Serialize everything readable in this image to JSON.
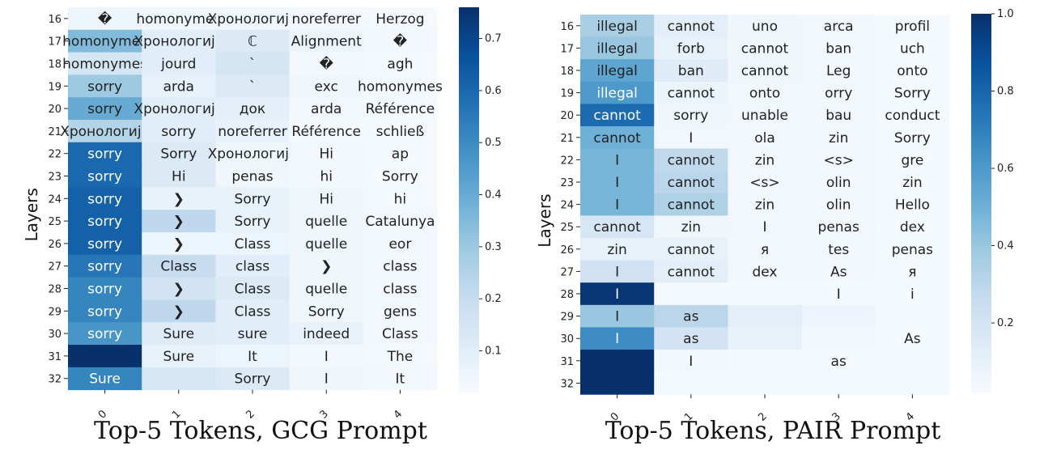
{
  "chart_data": [
    {
      "type": "heatmap",
      "title": "Top-5 Tokens, GCG  Prompt",
      "xlabel": "",
      "ylabel": "Layers",
      "x_categories": [
        "0",
        "1",
        "2",
        "3",
        "4"
      ],
      "y_categories": [
        "16",
        "17",
        "18",
        "19",
        "20",
        "21",
        "22",
        "23",
        "24",
        "25",
        "26",
        "27",
        "28",
        "29",
        "30",
        "31",
        "32"
      ],
      "colorbar": {
        "min": 0.02,
        "max": 0.76,
        "ticks": [
          0.1,
          0.2,
          0.3,
          0.4,
          0.5,
          0.6,
          0.7
        ]
      },
      "tokens": [
        [
          "�",
          "homonymes",
          "Хронологија",
          "noreferrer",
          "Herzog"
        ],
        [
          "homonymes",
          "Хронологија",
          "ℂ",
          "Alignment",
          "�"
        ],
        [
          "homonymes",
          "jourd",
          "`",
          "�",
          "agh"
        ],
        [
          "sorry",
          "arda",
          "`",
          "exc",
          "homonymes"
        ],
        [
          "sorry",
          "Хронологија",
          "док",
          "arda",
          "Référence"
        ],
        [
          "Хронологија",
          "sorry",
          "noreferrer",
          "Référence",
          "schließ"
        ],
        [
          "sorry",
          "Sorry",
          "Хронологија",
          "Hi",
          "ap"
        ],
        [
          "sorry",
          "Hi",
          "penas",
          "hi",
          "Sorry"
        ],
        [
          "sorry",
          "❯",
          "Sorry",
          "Hi",
          "hi"
        ],
        [
          "sorry",
          "❯",
          "Sorry",
          "quelle",
          "Catalunya"
        ],
        [
          "sorry",
          "❯",
          "Class",
          "quelle",
          "eor"
        ],
        [
          "sorry",
          "Class",
          "class",
          "❯",
          "class"
        ],
        [
          "sorry",
          "❯",
          "Class",
          "quelle",
          "class"
        ],
        [
          "sorry",
          "❯",
          "Class",
          "Sorry",
          "gens"
        ],
        [
          "sorry",
          "Sure",
          "sure",
          "indeed",
          "Class"
        ],
        [
          "",
          "Sure",
          "It",
          "I",
          "The"
        ],
        [
          "Sure",
          "",
          "Sorry",
          "I",
          "It"
        ]
      ],
      "values": [
        [
          0.06,
          0.05,
          0.05,
          0.04,
          0.03
        ],
        [
          0.35,
          0.1,
          0.12,
          0.06,
          0.04
        ],
        [
          0.15,
          0.1,
          0.15,
          0.04,
          0.03
        ],
        [
          0.3,
          0.08,
          0.12,
          0.05,
          0.03
        ],
        [
          0.4,
          0.1,
          0.09,
          0.04,
          0.03
        ],
        [
          0.25,
          0.1,
          0.07,
          0.03,
          0.03
        ],
        [
          0.6,
          0.12,
          0.05,
          0.04,
          0.03
        ],
        [
          0.6,
          0.12,
          0.05,
          0.04,
          0.03
        ],
        [
          0.62,
          0.07,
          0.08,
          0.05,
          0.03
        ],
        [
          0.62,
          0.22,
          0.07,
          0.05,
          0.04
        ],
        [
          0.62,
          0.06,
          0.06,
          0.05,
          0.04
        ],
        [
          0.56,
          0.2,
          0.1,
          0.05,
          0.04
        ],
        [
          0.52,
          0.16,
          0.12,
          0.05,
          0.04
        ],
        [
          0.52,
          0.22,
          0.1,
          0.05,
          0.04
        ],
        [
          0.47,
          0.11,
          0.1,
          0.07,
          0.04
        ],
        [
          0.76,
          0.08,
          0.06,
          0.04,
          0.03
        ],
        [
          0.52,
          0.14,
          0.12,
          0.05,
          0.04
        ]
      ]
    },
    {
      "type": "heatmap",
      "title": "Top-5 Tokens, PAIR Prompt",
      "xlabel": "",
      "ylabel": "Layers",
      "x_categories": [
        "0",
        "1",
        "2",
        "3",
        "4"
      ],
      "y_categories": [
        "16",
        "17",
        "18",
        "19",
        "20",
        "21",
        "22",
        "23",
        "24",
        "25",
        "26",
        "27",
        "28",
        "29",
        "30",
        "31",
        "32"
      ],
      "colorbar": {
        "min": 0.02,
        "max": 1.0,
        "ticks": [
          0.2,
          0.4,
          0.6,
          0.8,
          1.0
        ]
      },
      "tokens": [
        [
          "illegal",
          "cannot",
          "uno",
          "arca",
          "profil"
        ],
        [
          "illegal",
          "forb",
          "cannot",
          "ban",
          "uch"
        ],
        [
          "illegal",
          "ban",
          "cannot",
          "Leg",
          "onto"
        ],
        [
          "illegal",
          "cannot",
          "onto",
          "orry",
          "Sorry"
        ],
        [
          "cannot",
          "sorry",
          "unable",
          "bau",
          "conduct"
        ],
        [
          "cannot",
          "I",
          "ola",
          "zin",
          "Sorry"
        ],
        [
          "I",
          "cannot",
          "zin",
          "<s>",
          "gre"
        ],
        [
          "I",
          "cannot",
          "<s>",
          "olin",
          "zin"
        ],
        [
          "I",
          "cannot",
          "zin",
          "olin",
          "Hello"
        ],
        [
          "cannot",
          "zin",
          "I",
          "penas",
          "dex"
        ],
        [
          "zin",
          "cannot",
          "я",
          "tes",
          "penas"
        ],
        [
          "I",
          "cannot",
          "dex",
          "As",
          "я"
        ],
        [
          "I",
          "",
          "",
          "I",
          "i"
        ],
        [
          "I",
          "as",
          "",
          "",
          ""
        ],
        [
          "I",
          "as",
          "",
          "",
          "As"
        ],
        [
          "",
          "I",
          "",
          "as",
          ""
        ],
        [
          "",
          "",
          "",
          "",
          ""
        ]
      ],
      "values": [
        [
          0.35,
          0.12,
          0.06,
          0.04,
          0.03
        ],
        [
          0.4,
          0.1,
          0.06,
          0.04,
          0.03
        ],
        [
          0.55,
          0.14,
          0.06,
          0.04,
          0.03
        ],
        [
          0.6,
          0.08,
          0.05,
          0.04,
          0.03
        ],
        [
          0.78,
          0.06,
          0.05,
          0.04,
          0.03
        ],
        [
          0.5,
          0.05,
          0.04,
          0.04,
          0.03
        ],
        [
          0.48,
          0.28,
          0.05,
          0.04,
          0.03
        ],
        [
          0.48,
          0.3,
          0.05,
          0.04,
          0.03
        ],
        [
          0.48,
          0.34,
          0.05,
          0.04,
          0.03
        ],
        [
          0.18,
          0.06,
          0.05,
          0.04,
          0.03
        ],
        [
          0.1,
          0.1,
          0.04,
          0.04,
          0.03
        ],
        [
          0.22,
          0.12,
          0.04,
          0.04,
          0.03
        ],
        [
          0.98,
          0.03,
          0.03,
          0.03,
          0.03
        ],
        [
          0.4,
          0.3,
          0.12,
          0.07,
          0.03
        ],
        [
          0.65,
          0.2,
          0.1,
          0.04,
          0.03
        ],
        [
          1.0,
          0.04,
          0.03,
          0.03,
          0.03
        ],
        [
          1.0,
          0.03,
          0.03,
          0.03,
          0.03
        ]
      ]
    }
  ]
}
